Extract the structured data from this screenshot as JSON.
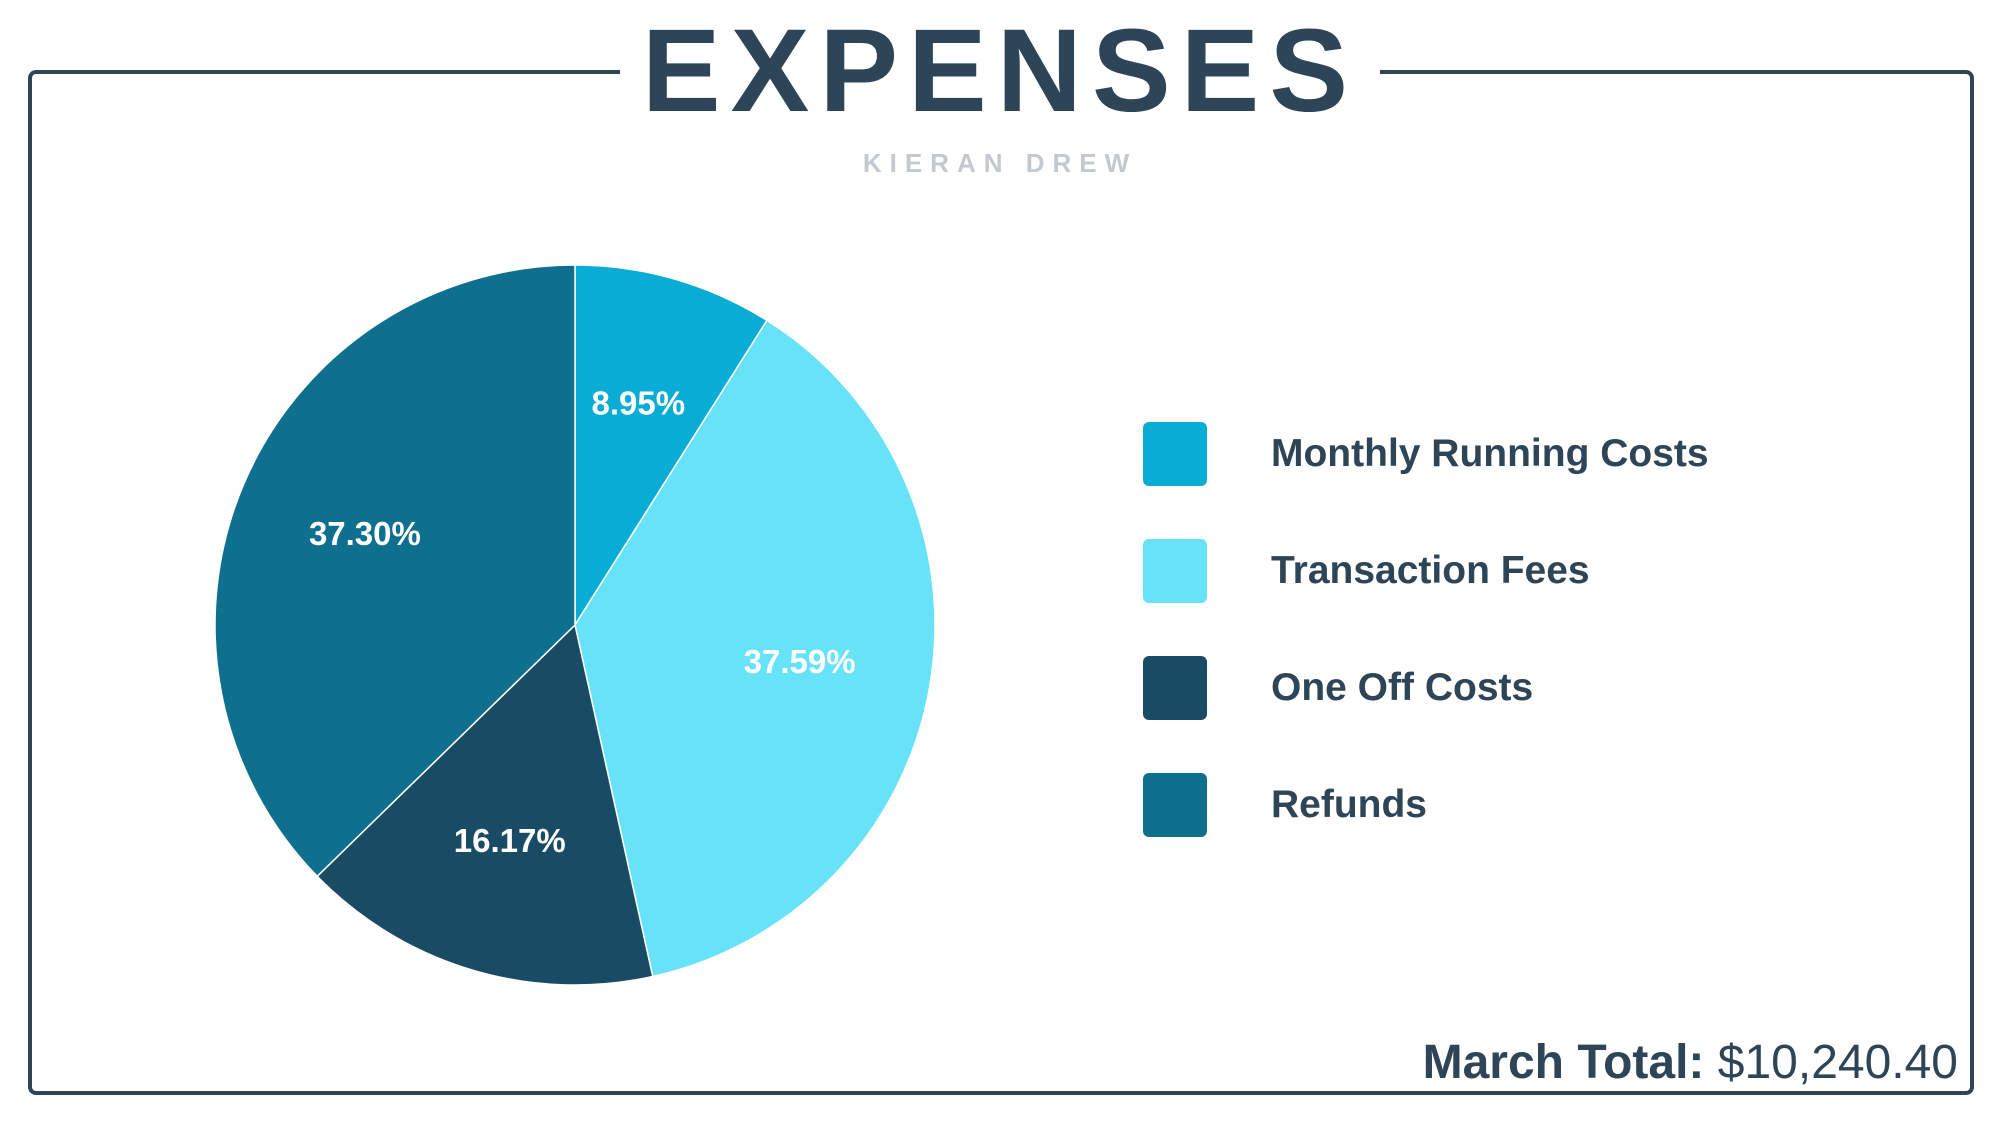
{
  "header": {
    "title": "EXPENSES",
    "subtitle": "KIERAN DREW"
  },
  "chart_data": {
    "type": "pie",
    "categories": [
      "Monthly Running Costs",
      "Transaction Fees",
      "One Off Costs",
      "Refunds"
    ],
    "values": [
      8.95,
      37.59,
      16.17,
      37.3
    ],
    "labels": [
      "8.95%",
      "37.59%",
      "16.17%",
      "37.30%"
    ],
    "colors": [
      "#09acd4",
      "#67e2f9",
      "#1a4b65",
      "#0f6f8e"
    ],
    "legend_position": "right"
  },
  "legend": {
    "items": [
      {
        "label": "Monthly Running Costs",
        "color": "#09acd4"
      },
      {
        "label": "Transaction Fees",
        "color": "#67e2f9"
      },
      {
        "label": "One Off Costs",
        "color": "#1a4b65"
      },
      {
        "label": "Refunds",
        "color": "#0f6f8e"
      }
    ]
  },
  "footer": {
    "total_label": "March Total:",
    "total_value": "$10,240.40"
  },
  "colors": {
    "text": "#2e4457",
    "subtitle": "#c3c9d0",
    "frame": "#2e4457"
  }
}
